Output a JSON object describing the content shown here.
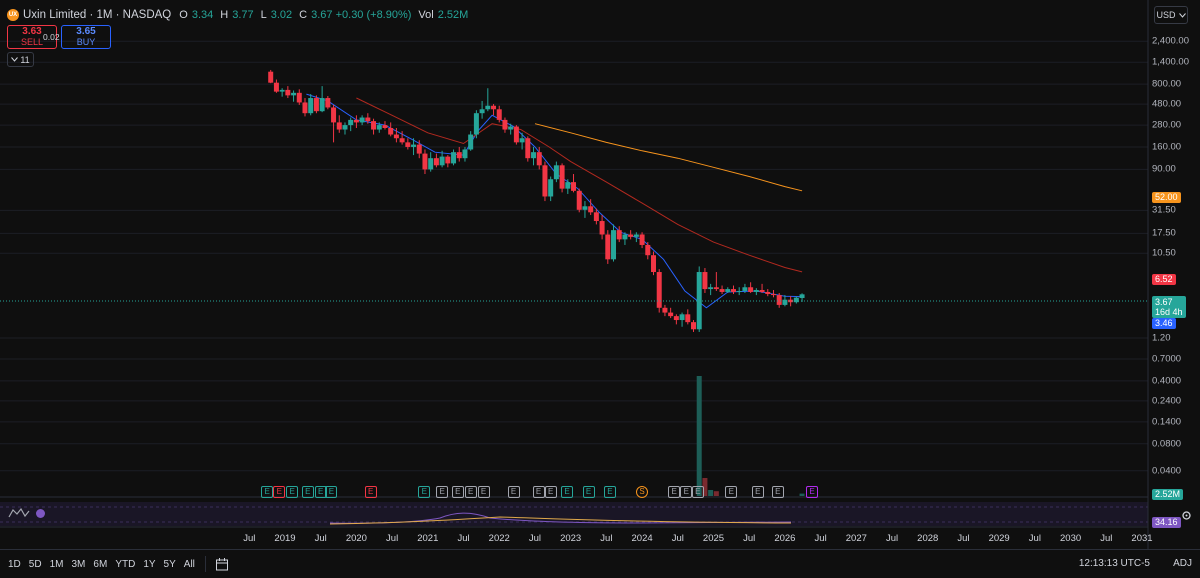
{
  "legend": {
    "logo_text": "UX",
    "symbol": "Uxin Limited · 1M · NASDAQ",
    "o_label": "O",
    "o_value": "3.34",
    "h_label": "H",
    "h_value": "3.77",
    "l_label": "L",
    "l_value": "3.02",
    "c_label": "C",
    "c_value": "3.67 +0.30 (+8.90%)",
    "vol_label": "Vol",
    "vol_value": "2.52M"
  },
  "trade": {
    "sell_price": "3.63",
    "sell_label": "SELL",
    "spread": "0.02",
    "buy_price": "3.65",
    "buy_label": "BUY"
  },
  "collapse": {
    "icon": "chevron-down-icon",
    "count": "11"
  },
  "currency": {
    "label": "USD",
    "icon": "chevron-down-icon"
  },
  "price_axis": {
    "labels": [
      {
        "v": 2400,
        "t": "2,400.00"
      },
      {
        "v": 1400,
        "t": "1,400.00"
      },
      {
        "v": 800,
        "t": "800.00"
      },
      {
        "v": 480,
        "t": "480.00"
      },
      {
        "v": 280,
        "t": "280.00"
      },
      {
        "v": 160,
        "t": "160.00"
      },
      {
        "v": 90,
        "t": "90.00"
      },
      {
        "v": 31.5,
        "t": "31.50"
      },
      {
        "v": 17.5,
        "t": "17.50"
      },
      {
        "v": 10.5,
        "t": "10.50"
      },
      {
        "v": 1.2,
        "t": "1.20"
      },
      {
        "v": 0.7,
        "t": "0.7000"
      },
      {
        "v": 0.4,
        "t": "0.4000"
      },
      {
        "v": 0.24,
        "t": "0.2400"
      },
      {
        "v": 0.14,
        "t": "0.1400"
      },
      {
        "v": 0.08,
        "t": "0.0800"
      },
      {
        "v": 0.04,
        "t": "0.0400"
      }
    ],
    "scale": "log"
  },
  "badges": {
    "sma_long": {
      "value": "52.00",
      "color": "#f7941d"
    },
    "sma_mid": {
      "value": "6.52",
      "color": "#f23645"
    },
    "last": {
      "value": "3.67",
      "countdown": "16d 4h",
      "color": "#26a69a"
    },
    "sma_short": {
      "value": "3.46",
      "color": "#2962ff"
    },
    "volume": {
      "value": "2.52M",
      "color": "#26a69a"
    },
    "indicator": {
      "value": "34.16",
      "color": "#7e57c2"
    }
  },
  "time_axis": [
    "Jul",
    "2019",
    "Jul",
    "2020",
    "Jul",
    "2021",
    "Jul",
    "2022",
    "Jul",
    "2023",
    "Jul",
    "2024",
    "Jul",
    "2025",
    "Jul",
    "2026",
    "Jul",
    "2027",
    "Jul",
    "2028",
    "Jul",
    "2029",
    "Jul",
    "2030",
    "Jul",
    "2031"
  ],
  "events": [
    {
      "t": "2018.75",
      "k": "Eg"
    },
    {
      "t": "2018.92",
      "k": "Er"
    },
    {
      "t": "2019.1",
      "k": "Eg"
    },
    {
      "t": "2019.32",
      "k": "Eg"
    },
    {
      "t": "2019.5",
      "k": "Eg"
    },
    {
      "t": "2019.65",
      "k": "Eg"
    },
    {
      "t": "2020.2",
      "k": "Er"
    },
    {
      "t": "2020.95",
      "k": "Eg"
    },
    {
      "t": "2021.2",
      "k": "E"
    },
    {
      "t": "2021.42",
      "k": "E"
    },
    {
      "t": "2021.6",
      "k": "E"
    },
    {
      "t": "2021.78",
      "k": "E"
    },
    {
      "t": "2022.2",
      "k": "E"
    },
    {
      "t": "2022.55",
      "k": "E"
    },
    {
      "t": "2022.72",
      "k": "E"
    },
    {
      "t": "2022.95",
      "k": "Eg"
    },
    {
      "t": "2023.25",
      "k": "Eg"
    },
    {
      "t": "2023.55",
      "k": "Eg"
    },
    {
      "t": "2024.0",
      "k": "S"
    },
    {
      "t": "2024.45",
      "k": "E"
    },
    {
      "t": "2024.62",
      "k": "E"
    },
    {
      "t": "2024.78",
      "k": "E"
    },
    {
      "t": "2025.25",
      "k": "E"
    },
    {
      "t": "2025.62",
      "k": "E"
    },
    {
      "t": "2025.9",
      "k": "E"
    },
    {
      "t": "2026.38",
      "k": "Ep"
    }
  ],
  "bottom": {
    "ranges": [
      "1D",
      "5D",
      "1M",
      "3M",
      "6M",
      "YTD",
      "1Y",
      "5Y",
      "All"
    ],
    "calendar_icon": "calendar-icon",
    "clock": "12:13:13 UTC-5",
    "adj": "ADJ",
    "settings_icon": "gear-icon"
  },
  "indicator_ctl": {
    "icon": "indicator-icon"
  },
  "chart_data": {
    "type": "candlestick",
    "scale": "log",
    "timeframe": "1M",
    "x_range": [
      2018.3,
      2031.1
    ],
    "y_range": [
      0.03,
      3200
    ],
    "candles": [
      {
        "t": 2018.8,
        "o": 1100,
        "h": 1150,
        "l": 820,
        "c": 830
      },
      {
        "t": 2018.88,
        "o": 830,
        "h": 900,
        "l": 640,
        "c": 660
      },
      {
        "t": 2018.96,
        "o": 660,
        "h": 720,
        "l": 580,
        "c": 690
      },
      {
        "t": 2019.04,
        "o": 690,
        "h": 760,
        "l": 560,
        "c": 600
      },
      {
        "t": 2019.12,
        "o": 600,
        "h": 680,
        "l": 510,
        "c": 640
      },
      {
        "t": 2019.2,
        "o": 640,
        "h": 700,
        "l": 470,
        "c": 500
      },
      {
        "t": 2019.28,
        "o": 500,
        "h": 560,
        "l": 350,
        "c": 380
      },
      {
        "t": 2019.36,
        "o": 380,
        "h": 620,
        "l": 360,
        "c": 560
      },
      {
        "t": 2019.44,
        "o": 560,
        "h": 600,
        "l": 380,
        "c": 400
      },
      {
        "t": 2019.52,
        "o": 400,
        "h": 760,
        "l": 390,
        "c": 560
      },
      {
        "t": 2019.6,
        "o": 560,
        "h": 590,
        "l": 420,
        "c": 440
      },
      {
        "t": 2019.68,
        "o": 440,
        "h": 470,
        "l": 180,
        "c": 300
      },
      {
        "t": 2019.76,
        "o": 300,
        "h": 360,
        "l": 230,
        "c": 250
      },
      {
        "t": 2019.84,
        "o": 250,
        "h": 300,
        "l": 220,
        "c": 280
      },
      {
        "t": 2019.92,
        "o": 280,
        "h": 340,
        "l": 240,
        "c": 320
      },
      {
        "t": 2020.0,
        "o": 320,
        "h": 360,
        "l": 260,
        "c": 300
      },
      {
        "t": 2020.08,
        "o": 300,
        "h": 360,
        "l": 280,
        "c": 340
      },
      {
        "t": 2020.16,
        "o": 340,
        "h": 380,
        "l": 290,
        "c": 310
      },
      {
        "t": 2020.24,
        "o": 310,
        "h": 330,
        "l": 220,
        "c": 250
      },
      {
        "t": 2020.32,
        "o": 250,
        "h": 300,
        "l": 230,
        "c": 280
      },
      {
        "t": 2020.4,
        "o": 280,
        "h": 310,
        "l": 250,
        "c": 260
      },
      {
        "t": 2020.48,
        "o": 260,
        "h": 300,
        "l": 210,
        "c": 220
      },
      {
        "t": 2020.56,
        "o": 220,
        "h": 260,
        "l": 180,
        "c": 200
      },
      {
        "t": 2020.64,
        "o": 200,
        "h": 240,
        "l": 170,
        "c": 180
      },
      {
        "t": 2020.72,
        "o": 180,
        "h": 200,
        "l": 150,
        "c": 160
      },
      {
        "t": 2020.8,
        "o": 160,
        "h": 200,
        "l": 130,
        "c": 170
      },
      {
        "t": 2020.88,
        "o": 170,
        "h": 190,
        "l": 120,
        "c": 135
      },
      {
        "t": 2020.96,
        "o": 135,
        "h": 150,
        "l": 80,
        "c": 90
      },
      {
        "t": 2021.04,
        "o": 90,
        "h": 140,
        "l": 85,
        "c": 120
      },
      {
        "t": 2021.12,
        "o": 120,
        "h": 135,
        "l": 95,
        "c": 100
      },
      {
        "t": 2021.2,
        "o": 100,
        "h": 145,
        "l": 95,
        "c": 125
      },
      {
        "t": 2021.28,
        "o": 125,
        "h": 130,
        "l": 95,
        "c": 105
      },
      {
        "t": 2021.36,
        "o": 105,
        "h": 150,
        "l": 100,
        "c": 140
      },
      {
        "t": 2021.44,
        "o": 140,
        "h": 160,
        "l": 110,
        "c": 120
      },
      {
        "t": 2021.52,
        "o": 120,
        "h": 160,
        "l": 110,
        "c": 150
      },
      {
        "t": 2021.6,
        "o": 150,
        "h": 240,
        "l": 145,
        "c": 220
      },
      {
        "t": 2021.68,
        "o": 220,
        "h": 410,
        "l": 200,
        "c": 380
      },
      {
        "t": 2021.76,
        "o": 380,
        "h": 520,
        "l": 330,
        "c": 420
      },
      {
        "t": 2021.84,
        "o": 420,
        "h": 720,
        "l": 400,
        "c": 460
      },
      {
        "t": 2021.92,
        "o": 460,
        "h": 480,
        "l": 360,
        "c": 420
      },
      {
        "t": 2022.0,
        "o": 420,
        "h": 460,
        "l": 300,
        "c": 320
      },
      {
        "t": 2022.08,
        "o": 320,
        "h": 340,
        "l": 230,
        "c": 250
      },
      {
        "t": 2022.16,
        "o": 250,
        "h": 290,
        "l": 220,
        "c": 270
      },
      {
        "t": 2022.24,
        "o": 270,
        "h": 280,
        "l": 170,
        "c": 180
      },
      {
        "t": 2022.32,
        "o": 180,
        "h": 230,
        "l": 150,
        "c": 200
      },
      {
        "t": 2022.4,
        "o": 200,
        "h": 210,
        "l": 110,
        "c": 120
      },
      {
        "t": 2022.48,
        "o": 120,
        "h": 160,
        "l": 100,
        "c": 140
      },
      {
        "t": 2022.56,
        "o": 140,
        "h": 160,
        "l": 90,
        "c": 100
      },
      {
        "t": 2022.64,
        "o": 100,
        "h": 110,
        "l": 40,
        "c": 45
      },
      {
        "t": 2022.72,
        "o": 45,
        "h": 75,
        "l": 40,
        "c": 70
      },
      {
        "t": 2022.8,
        "o": 70,
        "h": 110,
        "l": 65,
        "c": 100
      },
      {
        "t": 2022.88,
        "o": 100,
        "h": 105,
        "l": 50,
        "c": 55
      },
      {
        "t": 2022.96,
        "o": 55,
        "h": 70,
        "l": 48,
        "c": 65
      },
      {
        "t": 2023.04,
        "o": 65,
        "h": 80,
        "l": 50,
        "c": 52
      },
      {
        "t": 2023.12,
        "o": 52,
        "h": 55,
        "l": 30,
        "c": 32
      },
      {
        "t": 2023.2,
        "o": 32,
        "h": 40,
        "l": 26,
        "c": 35
      },
      {
        "t": 2023.28,
        "o": 35,
        "h": 42,
        "l": 28,
        "c": 30
      },
      {
        "t": 2023.36,
        "o": 30,
        "h": 33,
        "l": 22,
        "c": 24
      },
      {
        "t": 2023.44,
        "o": 24,
        "h": 28,
        "l": 15,
        "c": 17
      },
      {
        "t": 2023.52,
        "o": 17,
        "h": 19,
        "l": 8,
        "c": 9
      },
      {
        "t": 2023.6,
        "o": 9,
        "h": 22,
        "l": 8.5,
        "c": 19
      },
      {
        "t": 2023.68,
        "o": 19,
        "h": 21,
        "l": 14,
        "c": 15
      },
      {
        "t": 2023.76,
        "o": 15,
        "h": 18,
        "l": 13,
        "c": 17
      },
      {
        "t": 2023.84,
        "o": 17,
        "h": 19,
        "l": 15,
        "c": 16
      },
      {
        "t": 2023.92,
        "o": 16,
        "h": 18,
        "l": 14,
        "c": 17
      },
      {
        "t": 2024.0,
        "o": 17,
        "h": 18,
        "l": 12,
        "c": 13
      },
      {
        "t": 2024.08,
        "o": 13,
        "h": 14,
        "l": 9,
        "c": 10
      },
      {
        "t": 2024.16,
        "o": 10,
        "h": 11,
        "l": 6,
        "c": 6.5
      },
      {
        "t": 2024.24,
        "o": 6.5,
        "h": 7,
        "l": 2.3,
        "c": 2.6
      },
      {
        "t": 2024.32,
        "o": 2.6,
        "h": 2.8,
        "l": 2.1,
        "c": 2.3
      },
      {
        "t": 2024.4,
        "o": 2.3,
        "h": 2.6,
        "l": 2.0,
        "c": 2.1
      },
      {
        "t": 2024.48,
        "o": 2.1,
        "h": 2.2,
        "l": 1.7,
        "c": 1.9
      },
      {
        "t": 2024.56,
        "o": 1.9,
        "h": 2.3,
        "l": 1.6,
        "c": 2.2
      },
      {
        "t": 2024.64,
        "o": 2.2,
        "h": 2.5,
        "l": 1.7,
        "c": 1.8
      },
      {
        "t": 2024.72,
        "o": 1.8,
        "h": 1.9,
        "l": 1.4,
        "c": 1.5
      },
      {
        "t": 2024.8,
        "o": 1.5,
        "h": 7.5,
        "l": 1.4,
        "c": 6.5
      },
      {
        "t": 2024.88,
        "o": 6.5,
        "h": 7.2,
        "l": 3.8,
        "c": 4.2
      },
      {
        "t": 2024.96,
        "o": 4.2,
        "h": 4.8,
        "l": 3.6,
        "c": 4.4
      },
      {
        "t": 2025.04,
        "o": 4.4,
        "h": 6.5,
        "l": 4.0,
        "c": 4.2
      },
      {
        "t": 2025.12,
        "o": 4.2,
        "h": 4.6,
        "l": 3.7,
        "c": 3.9
      },
      {
        "t": 2025.2,
        "o": 3.9,
        "h": 4.4,
        "l": 3.8,
        "c": 4.2
      },
      {
        "t": 2025.28,
        "o": 4.2,
        "h": 4.6,
        "l": 3.7,
        "c": 3.9
      },
      {
        "t": 2025.36,
        "o": 3.9,
        "h": 4.4,
        "l": 3.6,
        "c": 4.0
      },
      {
        "t": 2025.44,
        "o": 4.0,
        "h": 4.8,
        "l": 3.8,
        "c": 4.4
      },
      {
        "t": 2025.52,
        "o": 4.4,
        "h": 5.0,
        "l": 3.8,
        "c": 3.9
      },
      {
        "t": 2025.6,
        "o": 3.9,
        "h": 4.3,
        "l": 3.6,
        "c": 4.1
      },
      {
        "t": 2025.68,
        "o": 4.1,
        "h": 4.8,
        "l": 3.8,
        "c": 3.9
      },
      {
        "t": 2025.76,
        "o": 3.9,
        "h": 4.2,
        "l": 3.5,
        "c": 3.7
      },
      {
        "t": 2025.84,
        "o": 3.7,
        "h": 4.1,
        "l": 3.4,
        "c": 3.6
      },
      {
        "t": 2025.92,
        "o": 3.6,
        "h": 3.8,
        "l": 2.6,
        "c": 2.8
      },
      {
        "t": 2026.0,
        "o": 2.8,
        "h": 3.6,
        "l": 2.7,
        "c": 3.2
      },
      {
        "t": 2026.08,
        "o": 3.2,
        "h": 3.5,
        "l": 2.7,
        "c": 3.0
      },
      {
        "t": 2026.16,
        "o": 3.0,
        "h": 3.5,
        "l": 2.9,
        "c": 3.37
      },
      {
        "t": 2026.24,
        "o": 3.34,
        "h": 3.77,
        "l": 3.02,
        "c": 3.67
      }
    ],
    "sma_short": {
      "color": "#2962ff",
      "points": [
        [
          2019.3,
          620
        ],
        [
          2019.6,
          520
        ],
        [
          2020.0,
          320
        ],
        [
          2020.4,
          280
        ],
        [
          2020.8,
          190
        ],
        [
          2021.1,
          140
        ],
        [
          2021.5,
          130
        ],
        [
          2021.7,
          240
        ],
        [
          2021.9,
          360
        ],
        [
          2022.2,
          270
        ],
        [
          2022.5,
          160
        ],
        [
          2022.8,
          80
        ],
        [
          2023.1,
          55
        ],
        [
          2023.4,
          30
        ],
        [
          2023.7,
          18
        ],
        [
          2024.0,
          15
        ],
        [
          2024.3,
          9
        ],
        [
          2024.6,
          4
        ],
        [
          2024.9,
          2.6
        ],
        [
          2025.2,
          3.9
        ],
        [
          2025.6,
          4.0
        ],
        [
          2026.0,
          3.5
        ],
        [
          2026.24,
          3.46
        ]
      ]
    },
    "sma_mid": {
      "color": "#b2291f",
      "points": [
        [
          2020.0,
          560
        ],
        [
          2020.5,
          360
        ],
        [
          2021.0,
          230
        ],
        [
          2021.5,
          175
        ],
        [
          2021.9,
          290
        ],
        [
          2022.3,
          250
        ],
        [
          2022.7,
          160
        ],
        [
          2023.0,
          110
        ],
        [
          2023.5,
          65
        ],
        [
          2024.0,
          38
        ],
        [
          2024.5,
          22
        ],
        [
          2025.0,
          14
        ],
        [
          2025.5,
          10
        ],
        [
          2026.0,
          7.3
        ],
        [
          2026.24,
          6.52
        ]
      ]
    },
    "sma_long": {
      "color": "#f7941d",
      "points": [
        [
          2022.5,
          290
        ],
        [
          2023.0,
          230
        ],
        [
          2023.5,
          180
        ],
        [
          2024.0,
          145
        ],
        [
          2024.5,
          120
        ],
        [
          2025.0,
          95
        ],
        [
          2025.5,
          75
        ],
        [
          2026.0,
          58
        ],
        [
          2026.24,
          52
        ]
      ]
    },
    "volume_spike": {
      "t": 2024.8,
      "value": "high"
    },
    "volume": [
      {
        "t": 2024.8,
        "v": 1.0,
        "up": true
      },
      {
        "t": 2024.88,
        "v": 0.15,
        "up": false
      },
      {
        "t": 2024.96,
        "v": 0.05,
        "up": true
      },
      {
        "t": 2025.04,
        "v": 0.04,
        "up": false
      },
      {
        "t": 2026.24,
        "v": 0.02,
        "up": true
      }
    ]
  }
}
